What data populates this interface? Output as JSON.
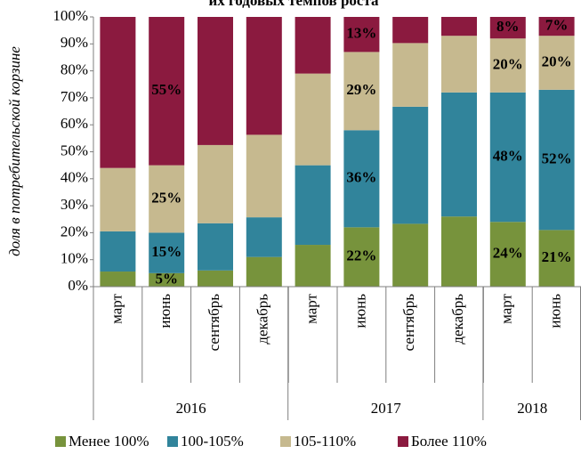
{
  "chart_data": {
    "type": "stacked_bar",
    "title": "их годовых темпов роста",
    "ylabel": "доля в потребительской корзине",
    "categories": [
      "март",
      "июнь",
      "сентябрь",
      "декабрь",
      "март",
      "июнь",
      "сентябрь",
      "декабрь",
      "март",
      "июнь"
    ],
    "groups": [
      {
        "label": "2016",
        "size": 4
      },
      {
        "label": "2017",
        "size": 4
      },
      {
        "label": "2018",
        "size": 2
      }
    ],
    "series": [
      {
        "name": "Менее 100%",
        "color": "#77933c",
        "values": [
          5.6,
          5,
          6,
          11,
          15.5,
          22,
          23.3,
          26,
          24,
          21
        ],
        "value_labels": [
          null,
          "5%",
          null,
          null,
          null,
          "22%",
          null,
          null,
          "24%",
          "21%"
        ]
      },
      {
        "name": "100-105%",
        "color": "#31849b",
        "values": [
          14.9,
          15,
          17.5,
          14.7,
          29.5,
          36,
          43.4,
          46,
          48,
          52
        ],
        "value_labels": [
          null,
          "15%",
          null,
          null,
          null,
          "36%",
          null,
          null,
          "48%",
          "52%"
        ]
      },
      {
        "name": "105-110%",
        "color": "#c6b98f",
        "values": [
          23.5,
          25,
          29,
          30.6,
          34,
          29,
          23.6,
          21,
          20,
          20
        ],
        "value_labels": [
          null,
          "25%",
          null,
          null,
          null,
          "29%",
          null,
          null,
          "20%",
          "20%"
        ]
      },
      {
        "name": "Более 110%",
        "color": "#8b1a3f",
        "values": [
          56,
          55,
          47.5,
          43.7,
          21,
          13,
          9.7,
          7,
          8,
          7
        ],
        "value_labels": [
          null,
          "55%",
          null,
          null,
          null,
          "13%",
          null,
          null,
          "8%",
          "7%"
        ]
      }
    ],
    "ylim": [
      0,
      100
    ],
    "yticks": [
      {
        "value": 0,
        "label": "0%"
      },
      {
        "value": 10,
        "label": "10%"
      },
      {
        "value": 20,
        "label": "20%"
      },
      {
        "value": 30,
        "label": "30%"
      },
      {
        "value": 40,
        "label": "40%"
      },
      {
        "value": 50,
        "label": "50%"
      },
      {
        "value": 60,
        "label": "60%"
      },
      {
        "value": 70,
        "label": "70%"
      },
      {
        "value": 80,
        "label": "80%"
      },
      {
        "value": 90,
        "label": "90%"
      },
      {
        "value": 100,
        "label": "100%"
      }
    ],
    "legend": "bottom"
  }
}
